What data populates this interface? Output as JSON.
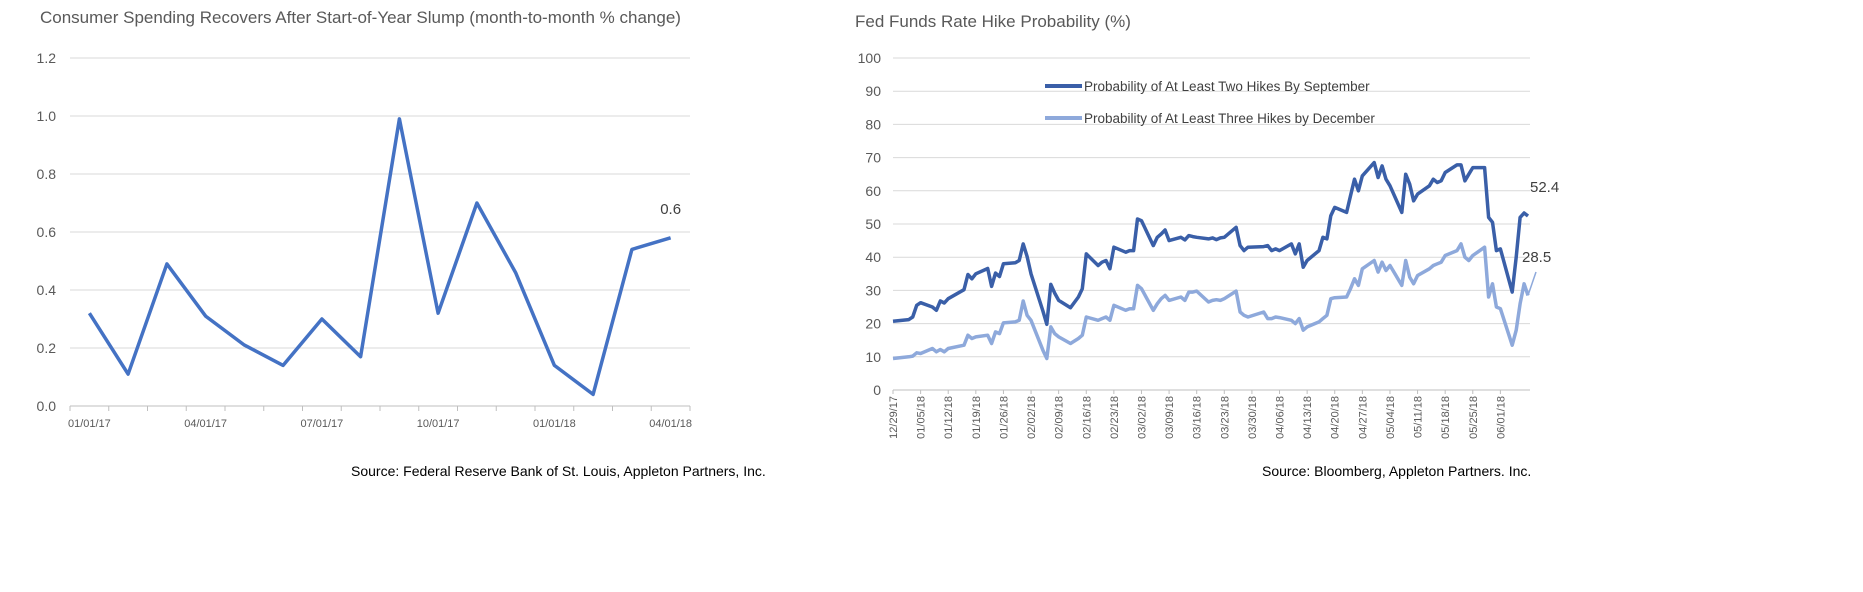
{
  "charts": [
    {
      "title": "Consumer Spending Recovers After Start-of-Year Slump (month-to-month % change)",
      "source": "Source: Federal Reserve Bank of St. Louis, Appleton Partners, Inc.",
      "colors": {
        "line": "#4472C4",
        "grid": "#D9D9D9",
        "axis": "#BFBFBF"
      }
    },
    {
      "title": "Fed Funds Rate Hike Probability (%)",
      "source": "Source: Bloomberg, Appleton Partners. Inc.",
      "colors": {
        "series1": "#3A5FA8",
        "series2": "#8EA9DB",
        "grid": "#D9D9D9",
        "axis": "#BFBFBF"
      }
    }
  ],
  "chart_data": [
    {
      "type": "line",
      "x": [
        "01/01/17",
        "02/01/17",
        "03/01/17",
        "04/01/17",
        "05/01/17",
        "06/01/17",
        "07/01/17",
        "08/01/17",
        "09/01/17",
        "10/01/17",
        "11/01/17",
        "12/01/17",
        "01/01/18",
        "02/01/18",
        "03/01/18",
        "04/01/18"
      ],
      "values": [
        0.32,
        0.11,
        0.49,
        0.31,
        0.21,
        0.14,
        0.3,
        0.17,
        0.99,
        0.32,
        0.7,
        0.46,
        0.14,
        0.04,
        0.54,
        0.58
      ],
      "xticks": [
        "01/01/17",
        "04/01/17",
        "07/01/17",
        "10/01/17",
        "01/01/18",
        "04/01/18"
      ],
      "yticks": [
        "0.0",
        "0.2",
        "0.4",
        "0.6",
        "0.8",
        "1.0",
        "1.2"
      ],
      "ylim": [
        0,
        1.2
      ],
      "end_label": "0.6",
      "grid": true
    },
    {
      "type": "line",
      "x_start": "12/29/17",
      "x_end": "06/08/18",
      "xticks": [
        "12/29/17",
        "01/05/18",
        "01/12/18",
        "01/19/18",
        "01/26/18",
        "02/02/18",
        "02/09/18",
        "02/16/18",
        "02/23/18",
        "03/02/18",
        "03/09/18",
        "03/16/18",
        "03/23/18",
        "03/30/18",
        "04/06/18",
        "04/13/18",
        "04/20/18",
        "04/27/18",
        "05/04/18",
        "05/11/18",
        "05/18/18",
        "05/25/18",
        "06/01/18"
      ],
      "yticks": [
        "0",
        "10",
        "20",
        "30",
        "40",
        "50",
        "60",
        "70",
        "80",
        "90",
        "100"
      ],
      "ylim": [
        0,
        100
      ],
      "legend_position": "top-center",
      "grid": true,
      "series": [
        {
          "name": "Probability of At Least Two Hikes By September",
          "end_label": "52.4",
          "points": [
            [
              "12/29/17",
              20.7
            ],
            [
              "01/02/18",
              21.2
            ],
            [
              "01/03/18",
              22.0
            ],
            [
              "01/04/18",
              25.5
            ],
            [
              "01/05/18",
              26.3
            ],
            [
              "01/08/18",
              25.0
            ],
            [
              "01/09/18",
              24.0
            ],
            [
              "01/10/18",
              26.8
            ],
            [
              "01/11/18",
              26.2
            ],
            [
              "01/12/18",
              27.5
            ],
            [
              "01/16/18",
              30.2
            ],
            [
              "01/17/18",
              34.8
            ],
            [
              "01/18/18",
              33.5
            ],
            [
              "01/19/18",
              35.0
            ],
            [
              "01/22/18",
              36.6
            ],
            [
              "01/23/18",
              31.2
            ],
            [
              "01/24/18",
              35.2
            ],
            [
              "01/25/18",
              34.2
            ],
            [
              "01/26/18",
              38.0
            ],
            [
              "01/29/18",
              38.3
            ],
            [
              "01/30/18",
              39.0
            ],
            [
              "01/31/18",
              44.0
            ],
            [
              "02/01/18",
              40.2
            ],
            [
              "02/02/18",
              35.0
            ],
            [
              "02/05/18",
              23.8
            ],
            [
              "02/06/18",
              19.8
            ],
            [
              "02/07/18",
              31.8
            ],
            [
              "02/08/18",
              29.2
            ],
            [
              "02/09/18",
              27.0
            ],
            [
              "02/12/18",
              24.8
            ],
            [
              "02/14/18",
              28.0
            ],
            [
              "02/15/18",
              30.5
            ],
            [
              "02/16/18",
              41.0
            ],
            [
              "02/19/18",
              37.5
            ],
            [
              "02/20/18",
              38.5
            ],
            [
              "02/21/18",
              39.0
            ],
            [
              "02/22/18",
              36.5
            ],
            [
              "02/23/18",
              43.0
            ],
            [
              "02/26/18",
              41.5
            ],
            [
              "02/27/18",
              42.0
            ],
            [
              "02/28/18",
              42.0
            ],
            [
              "03/01/18",
              51.5
            ],
            [
              "03/02/18",
              51.0
            ],
            [
              "03/05/18",
              43.5
            ],
            [
              "03/06/18",
              46.0
            ],
            [
              "03/07/18",
              47.0
            ],
            [
              "03/08/18",
              48.2
            ],
            [
              "03/09/18",
              45.0
            ],
            [
              "03/12/18",
              46.0
            ],
            [
              "03/13/18",
              45.2
            ],
            [
              "03/14/18",
              46.5
            ],
            [
              "03/15/18",
              46.2
            ],
            [
              "03/16/18",
              46.0
            ],
            [
              "03/19/18",
              45.5
            ],
            [
              "03/20/18",
              45.8
            ],
            [
              "03/21/18",
              45.3
            ],
            [
              "03/22/18",
              45.8
            ],
            [
              "03/23/18",
              46.0
            ],
            [
              "03/26/18",
              49.0
            ],
            [
              "03/27/18",
              43.5
            ],
            [
              "03/28/18",
              42.0
            ],
            [
              "03/29/18",
              43.0
            ],
            [
              "04/02/18",
              43.2
            ],
            [
              "04/03/18",
              43.5
            ],
            [
              "04/04/18",
              42.0
            ],
            [
              "04/05/18",
              42.5
            ],
            [
              "04/06/18",
              42.0
            ],
            [
              "04/09/18",
              44.0
            ],
            [
              "04/10/18",
              41.0
            ],
            [
              "04/11/18",
              44.0
            ],
            [
              "04/12/18",
              37.0
            ],
            [
              "04/13/18",
              39.0
            ],
            [
              "04/16/18",
              42.0
            ],
            [
              "04/17/18",
              46.0
            ],
            [
              "04/18/18",
              45.5
            ],
            [
              "04/19/18",
              52.5
            ],
            [
              "04/20/18",
              55.0
            ],
            [
              "04/23/18",
              53.5
            ],
            [
              "04/24/18",
              58.5
            ],
            [
              "04/25/18",
              63.5
            ],
            [
              "04/26/18",
              60.0
            ],
            [
              "04/27/18",
              64.5
            ],
            [
              "04/30/18",
              68.5
            ],
            [
              "05/01/18",
              64.0
            ],
            [
              "05/02/18",
              67.5
            ],
            [
              "05/03/18",
              63.5
            ],
            [
              "05/04/18",
              61.5
            ],
            [
              "05/07/18",
              53.5
            ],
            [
              "05/08/18",
              65.0
            ],
            [
              "05/09/18",
              62.0
            ],
            [
              "05/10/18",
              57.0
            ],
            [
              "05/11/18",
              59.0
            ],
            [
              "05/14/18",
              61.5
            ],
            [
              "05/15/18",
              63.5
            ],
            [
              "05/16/18",
              62.5
            ],
            [
              "05/17/18",
              63.0
            ],
            [
              "05/18/18",
              65.5
            ],
            [
              "05/21/18",
              67.8
            ],
            [
              "05/22/18",
              67.8
            ],
            [
              "05/23/18",
              63.0
            ],
            [
              "05/24/18",
              65.0
            ],
            [
              "05/25/18",
              67.0
            ],
            [
              "05/28/18",
              67.0
            ],
            [
              "05/29/18",
              52.0
            ],
            [
              "05/30/18",
              50.5
            ],
            [
              "05/31/18",
              42.0
            ],
            [
              "06/01/18",
              42.5
            ],
            [
              "06/04/18",
              29.5
            ],
            [
              "06/05/18",
              40.0
            ],
            [
              "06/06/18",
              52.0
            ],
            [
              "06/07/18",
              53.3
            ],
            [
              "06/08/18",
              52.4
            ]
          ]
        },
        {
          "name": "Probability of At Least Three Hikes by December",
          "end_label": "28.5",
          "points": [
            [
              "12/29/17",
              9.5
            ],
            [
              "01/02/18",
              10.0
            ],
            [
              "01/03/18",
              10.2
            ],
            [
              "01/04/18",
              11.2
            ],
            [
              "01/05/18",
              11.0
            ],
            [
              "01/08/18",
              12.5
            ],
            [
              "01/09/18",
              11.5
            ],
            [
              "01/10/18",
              12.2
            ],
            [
              "01/11/18",
              11.5
            ],
            [
              "01/12/18",
              12.5
            ],
            [
              "01/16/18",
              13.5
            ],
            [
              "01/17/18",
              16.5
            ],
            [
              "01/18/18",
              15.5
            ],
            [
              "01/19/18",
              16.0
            ],
            [
              "01/22/18",
              16.5
            ],
            [
              "01/23/18",
              14.0
            ],
            [
              "01/24/18",
              17.5
            ],
            [
              "01/25/18",
              17.0
            ],
            [
              "01/26/18",
              20.2
            ],
            [
              "01/29/18",
              20.5
            ],
            [
              "01/30/18",
              21.0
            ],
            [
              "01/31/18",
              26.8
            ],
            [
              "02/01/18",
              22.5
            ],
            [
              "02/02/18",
              21.0
            ],
            [
              "02/05/18",
              12.0
            ],
            [
              "02/06/18",
              9.5
            ],
            [
              "02/07/18",
              19.0
            ],
            [
              "02/08/18",
              17.0
            ],
            [
              "02/09/18",
              16.0
            ],
            [
              "02/12/18",
              14.0
            ],
            [
              "02/14/18",
              15.5
            ],
            [
              "02/15/18",
              16.5
            ],
            [
              "02/16/18",
              22.0
            ],
            [
              "02/19/18",
              21.0
            ],
            [
              "02/20/18",
              21.5
            ],
            [
              "02/21/18",
              22.0
            ],
            [
              "02/22/18",
              21.0
            ],
            [
              "02/23/18",
              25.5
            ],
            [
              "02/26/18",
              24.0
            ],
            [
              "02/27/18",
              24.5
            ],
            [
              "02/28/18",
              24.5
            ],
            [
              "03/01/18",
              31.5
            ],
            [
              "03/02/18",
              30.5
            ],
            [
              "03/05/18",
              24.0
            ],
            [
              "03/06/18",
              26.0
            ],
            [
              "03/07/18",
              27.5
            ],
            [
              "03/08/18",
              28.5
            ],
            [
              "03/09/18",
              27.0
            ],
            [
              "03/12/18",
              28.0
            ],
            [
              "03/13/18",
              27.0
            ],
            [
              "03/14/18",
              29.5
            ],
            [
              "03/15/18",
              29.5
            ],
            [
              "03/16/18",
              29.8
            ],
            [
              "03/19/18",
              26.5
            ],
            [
              "03/20/18",
              27.0
            ],
            [
              "03/21/18",
              27.2
            ],
            [
              "03/22/18",
              27.0
            ],
            [
              "03/23/18",
              27.5
            ],
            [
              "03/26/18",
              29.8
            ],
            [
              "03/27/18",
              23.5
            ],
            [
              "03/28/18",
              22.5
            ],
            [
              "03/29/18",
              22.0
            ],
            [
              "04/02/18",
              23.5
            ],
            [
              "04/03/18",
              21.5
            ],
            [
              "04/04/18",
              21.5
            ],
            [
              "04/05/18",
              22.0
            ],
            [
              "04/06/18",
              21.8
            ],
            [
              "04/09/18",
              21.0
            ],
            [
              "04/10/18",
              20.0
            ],
            [
              "04/11/18",
              21.5
            ],
            [
              "04/12/18",
              18.0
            ],
            [
              "04/13/18",
              19.0
            ],
            [
              "04/16/18",
              20.5
            ],
            [
              "04/17/18",
              21.5
            ],
            [
              "04/18/18",
              22.5
            ],
            [
              "04/19/18",
              27.5
            ],
            [
              "04/20/18",
              27.8
            ],
            [
              "04/23/18",
              28.0
            ],
            [
              "04/24/18",
              30.5
            ],
            [
              "04/25/18",
              33.5
            ],
            [
              "04/26/18",
              31.5
            ],
            [
              "04/27/18",
              36.5
            ],
            [
              "04/30/18",
              39.0
            ],
            [
              "05/01/18",
              35.5
            ],
            [
              "05/02/18",
              38.5
            ],
            [
              "05/03/18",
              36.0
            ],
            [
              "05/04/18",
              37.5
            ],
            [
              "05/07/18",
              31.5
            ],
            [
              "05/08/18",
              39.0
            ],
            [
              "05/09/18",
              34.0
            ],
            [
              "05/10/18",
              32.0
            ],
            [
              "05/11/18",
              34.5
            ],
            [
              "05/14/18",
              36.5
            ],
            [
              "05/15/18",
              37.5
            ],
            [
              "05/16/18",
              38.0
            ],
            [
              "05/17/18",
              38.5
            ],
            [
              "05/18/18",
              40.5
            ],
            [
              "05/21/18",
              42.0
            ],
            [
              "05/22/18",
              44.0
            ],
            [
              "05/23/18",
              40.0
            ],
            [
              "05/24/18",
              39.0
            ],
            [
              "05/25/18",
              40.5
            ],
            [
              "05/28/18",
              43.0
            ],
            [
              "05/29/18",
              28.0
            ],
            [
              "05/30/18",
              32.0
            ],
            [
              "05/31/18",
              25.0
            ],
            [
              "06/01/18",
              24.5
            ],
            [
              "06/04/18",
              13.5
            ],
            [
              "06/05/18",
              18.0
            ],
            [
              "06/06/18",
              26.0
            ],
            [
              "06/07/18",
              32.0
            ],
            [
              "06/08/18",
              28.5
            ]
          ]
        }
      ]
    }
  ]
}
